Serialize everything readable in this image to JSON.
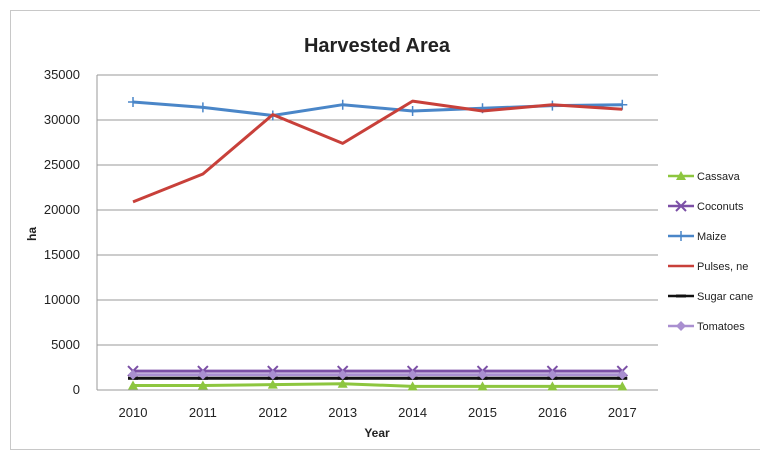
{
  "chart_data": {
    "type": "line",
    "title": "Harvested Area",
    "xlabel": "Year",
    "ylabel": "ha",
    "x": [
      "2010",
      "2011",
      "2012",
      "2013",
      "2014",
      "2015",
      "2016",
      "2017"
    ],
    "ylim": [
      0,
      35000
    ],
    "yticks": [
      "0",
      "5000",
      "10000",
      "15000",
      "20000",
      "25000",
      "30000",
      "35000"
    ],
    "grid": true,
    "legend_position": "right",
    "series": [
      {
        "name": "Cassava",
        "color": "#8dc63f",
        "marker": "triangle",
        "values": [
          500,
          500,
          600,
          700,
          400,
          400,
          400,
          400
        ]
      },
      {
        "name": "Coconuts",
        "color": "#7b4fa6",
        "marker": "x",
        "values": [
          2100,
          2100,
          2100,
          2100,
          2100,
          2100,
          2100,
          2100
        ]
      },
      {
        "name": "Maize",
        "color": "#4a86c8",
        "marker": "plus",
        "values": [
          32000,
          31400,
          30500,
          31700,
          31000,
          31300,
          31600,
          31700
        ]
      },
      {
        "name": "Pulses, ne",
        "color": "#c8403a",
        "marker": "none",
        "values": [
          20900,
          24000,
          30600,
          27400,
          32100,
          31000,
          31700,
          31200
        ]
      },
      {
        "name": "Sugar cane",
        "color": "#111111",
        "marker": "dash",
        "values": [
          1300,
          1300,
          1300,
          1300,
          1300,
          1300,
          1300,
          1300
        ]
      },
      {
        "name": "Tomatoes",
        "color": "#a98fd0",
        "marker": "diamond",
        "values": [
          1700,
          1700,
          1700,
          1700,
          1700,
          1700,
          1700,
          1700
        ]
      }
    ]
  }
}
